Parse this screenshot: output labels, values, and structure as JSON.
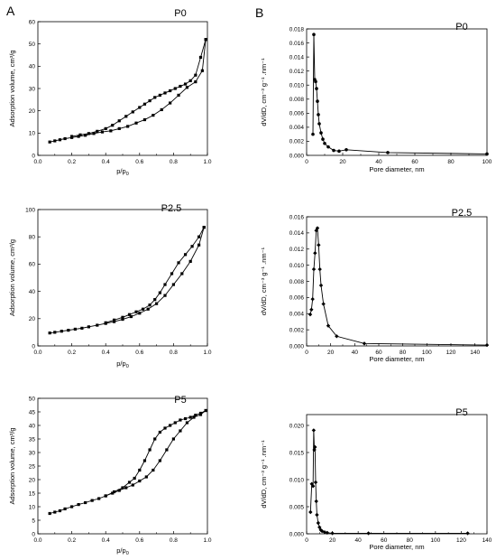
{
  "figure": {
    "panel_letters": [
      "A",
      "B"
    ]
  },
  "chart_data": [
    {
      "type": "line",
      "title": "P0",
      "xlabel": "p/p",
      "xlabel_sub": "0",
      "ylabel": "Adsorption volume, cm³/g",
      "xlim": [
        0.0,
        1.0
      ],
      "ylim": [
        0,
        60
      ],
      "xticks": [
        0.0,
        0.2,
        0.4,
        0.6,
        0.8,
        1.0
      ],
      "xtick_labels": [
        "0.0",
        "0.2",
        "0.4",
        "0.6",
        "0.8",
        "1.0"
      ],
      "yticks": [
        0,
        10,
        20,
        30,
        40,
        50,
        60
      ],
      "ytick_labels": [
        "0",
        "10",
        "20",
        "30",
        "40",
        "50",
        "60"
      ],
      "grid": false,
      "marker": "square",
      "series": [
        {
          "x": [
            0.07,
            0.1,
            0.13,
            0.16,
            0.2,
            0.24,
            0.28,
            0.33,
            0.38,
            0.43,
            0.48,
            0.53,
            0.58,
            0.63,
            0.68,
            0.73,
            0.78,
            0.83,
            0.88,
            0.93,
            0.97,
            0.99
          ],
          "y": [
            6,
            6.5,
            7,
            7.5,
            8,
            8.5,
            9,
            9.8,
            10.5,
            11,
            12,
            13,
            14.5,
            16,
            18,
            20.5,
            23.5,
            27,
            30.5,
            33,
            38,
            52
          ]
        },
        {
          "x": [
            0.99,
            0.96,
            0.93,
            0.9,
            0.87,
            0.84,
            0.81,
            0.78,
            0.75,
            0.72,
            0.69,
            0.66,
            0.63,
            0.6,
            0.56,
            0.52,
            0.48,
            0.44,
            0.4,
            0.35,
            0.3,
            0.25,
            0.2
          ],
          "y": [
            52,
            44,
            36,
            33.5,
            32,
            31,
            30,
            29,
            28,
            27,
            26,
            24.5,
            23,
            21.5,
            19.5,
            17.5,
            15.5,
            13.5,
            12,
            10.8,
            9.8,
            9.2,
            8.5
          ]
        }
      ]
    },
    {
      "type": "line",
      "title": "P0",
      "xlabel": "Pore diameter, nm",
      "ylabel": "dV/dD, cm⁻³ g⁻¹ .nm⁻¹",
      "xlim": [
        0,
        100
      ],
      "ylim": [
        0,
        0.018
      ],
      "xticks": [
        0,
        20,
        40,
        60,
        80,
        100
      ],
      "xtick_labels": [
        "0",
        "20",
        "40",
        "60",
        "80",
        "100"
      ],
      "yticks": [
        0,
        0.002,
        0.004,
        0.006,
        0.008,
        0.01,
        0.012,
        0.014,
        0.016,
        0.018
      ],
      "ytick_labels": [
        "0.000",
        "0.002",
        "0.004",
        "0.006",
        "0.008",
        "0.010",
        "0.012",
        "0.014",
        "0.016",
        "0.018"
      ],
      "grid": false,
      "marker": "circle",
      "series": [
        {
          "x": [
            3.5,
            4,
            4.5,
            5,
            5.5,
            6,
            6.5,
            7,
            8,
            9,
            10,
            12,
            15,
            18,
            22,
            45,
            100
          ],
          "y": [
            0.003,
            0.0172,
            0.0108,
            0.0105,
            0.0095,
            0.0077,
            0.0058,
            0.0045,
            0.0032,
            0.0023,
            0.0017,
            0.0012,
            0.0007,
            0.0006,
            0.0008,
            0.0004,
            0.0002
          ]
        }
      ]
    },
    {
      "type": "line",
      "title": "P2.5",
      "xlabel": "p/p",
      "xlabel_sub": "0",
      "ylabel": "Adsorption volume, cm³/g",
      "xlim": [
        0.0,
        1.0
      ],
      "ylim": [
        0,
        100
      ],
      "xticks": [
        0.0,
        0.2,
        0.4,
        0.6,
        0.8,
        1.0
      ],
      "xtick_labels": [
        "0.0",
        "0.2",
        "0.4",
        "0.6",
        "0.8",
        "1.0"
      ],
      "yticks": [
        0,
        20,
        40,
        60,
        80,
        100
      ],
      "ytick_labels": [
        "0",
        "20",
        "40",
        "60",
        "80",
        "100"
      ],
      "grid": false,
      "marker": "square",
      "series": [
        {
          "x": [
            0.07,
            0.1,
            0.14,
            0.18,
            0.22,
            0.26,
            0.3,
            0.35,
            0.4,
            0.45,
            0.5,
            0.55,
            0.6,
            0.65,
            0.7,
            0.75,
            0.8,
            0.85,
            0.9,
            0.95,
            0.98
          ],
          "y": [
            9.5,
            10,
            10.8,
            11.5,
            12.3,
            13,
            14,
            15.2,
            16.5,
            17.8,
            19.5,
            21.5,
            24,
            27,
            31,
            37,
            45,
            53,
            62,
            74,
            87
          ]
        },
        {
          "x": [
            0.98,
            0.95,
            0.91,
            0.87,
            0.83,
            0.79,
            0.75,
            0.72,
            0.69,
            0.66,
            0.62,
            0.58,
            0.54,
            0.5,
            0.45,
            0.4
          ],
          "y": [
            87,
            80,
            73,
            67,
            61,
            53,
            45,
            39,
            34,
            30,
            27,
            25,
            23,
            21,
            19,
            17
          ]
        }
      ]
    },
    {
      "type": "line",
      "title": "P2.5",
      "xlabel": "Pore diameter, nm",
      "ylabel": "dV/dD, cm⁻³ g⁻¹ .nm⁻¹",
      "xlim": [
        0,
        150
      ],
      "ylim": [
        0,
        0.016
      ],
      "xticks": [
        0,
        20,
        40,
        60,
        80,
        100,
        120,
        140
      ],
      "xtick_labels": [
        "0",
        "20",
        "40",
        "60",
        "80",
        "100",
        "120",
        "140"
      ],
      "yticks": [
        0,
        0.002,
        0.004,
        0.006,
        0.008,
        0.01,
        0.012,
        0.014,
        0.016
      ],
      "ytick_labels": [
        "0.000",
        "0.002",
        "0.004",
        "0.006",
        "0.008",
        "0.010",
        "0.012",
        "0.014",
        "0.016"
      ],
      "grid": false,
      "marker": "diamond",
      "series": [
        {
          "x": [
            3,
            4,
            5,
            6,
            7,
            8,
            9,
            10,
            11,
            12,
            14,
            18,
            25,
            48,
            150
          ],
          "y": [
            0.0039,
            0.0045,
            0.0058,
            0.0095,
            0.0115,
            0.0143,
            0.0146,
            0.0125,
            0.0095,
            0.0075,
            0.0052,
            0.0025,
            0.0012,
            0.0003,
            0.0001
          ]
        }
      ]
    },
    {
      "type": "line",
      "title": "P5",
      "xlabel": "p/p",
      "xlabel_sub": "0",
      "ylabel": "Adsorption volume, cm³/g",
      "xlim": [
        0.0,
        1.0
      ],
      "ylim": [
        0,
        50
      ],
      "xticks": [
        0.0,
        0.2,
        0.4,
        0.6,
        0.8,
        1.0
      ],
      "xtick_labels": [
        "0.0",
        "0.2",
        "0.4",
        "0.6",
        "0.8",
        "1.0"
      ],
      "yticks": [
        0,
        5,
        10,
        15,
        20,
        25,
        30,
        35,
        40,
        45,
        50
      ],
      "ytick_labels": [
        "0",
        "5",
        "10",
        "15",
        "20",
        "25",
        "30",
        "35",
        "40",
        "45",
        "50"
      ],
      "grid": false,
      "marker": "square",
      "series": [
        {
          "x": [
            0.07,
            0.1,
            0.13,
            0.16,
            0.2,
            0.24,
            0.28,
            0.32,
            0.36,
            0.4,
            0.44,
            0.48,
            0.52,
            0.56,
            0.6,
            0.64,
            0.68,
            0.72,
            0.76,
            0.8,
            0.84,
            0.88,
            0.92,
            0.96,
            0.99
          ],
          "y": [
            7.5,
            8,
            8.5,
            9.2,
            10,
            10.8,
            11.5,
            12.3,
            13,
            14,
            15,
            16,
            17,
            18,
            19.5,
            21,
            23.5,
            27,
            31,
            35,
            38,
            41,
            43,
            44,
            45.5
          ]
        },
        {
          "x": [
            0.99,
            0.96,
            0.93,
            0.9,
            0.87,
            0.84,
            0.81,
            0.78,
            0.75,
            0.72,
            0.69,
            0.66,
            0.63,
            0.6,
            0.57,
            0.54,
            0.5,
            0.45,
            0.4
          ],
          "y": [
            45.5,
            44.5,
            43.8,
            43,
            42.5,
            42,
            41,
            40,
            39,
            37.5,
            35,
            31,
            27,
            23.5,
            20.5,
            19,
            17,
            15.5,
            14
          ]
        }
      ]
    },
    {
      "type": "line",
      "title": "P5",
      "xlabel": "Pore diameter, nm",
      "ylabel": "dV/dD, cm⁻³ g⁻¹ .nm⁻¹",
      "xlim": [
        0,
        140
      ],
      "ylim": [
        0,
        0.022
      ],
      "xticks": [
        0,
        20,
        40,
        60,
        80,
        100,
        120,
        140
      ],
      "xtick_labels": [
        "0",
        "20",
        "40",
        "60",
        "80",
        "100",
        "120",
        "140"
      ],
      "yticks": [
        0,
        0.005,
        0.01,
        0.015,
        0.02
      ],
      "ytick_labels": [
        "0.000",
        "0.005",
        "0.010",
        "0.015",
        "0.020"
      ],
      "grid": false,
      "marker": "diamond",
      "series": [
        {
          "x": [
            3,
            4,
            5,
            5.5,
            6,
            6.5,
            7,
            7.5,
            8,
            9,
            10,
            11,
            12,
            14,
            16,
            20,
            48,
            125
          ],
          "y": [
            0.004,
            0.0092,
            0.0088,
            0.0191,
            0.0155,
            0.016,
            0.0095,
            0.006,
            0.0035,
            0.002,
            0.0012,
            0.0007,
            0.0005,
            0.0003,
            0.0002,
            0.0001,
            0.0001,
            0.0001
          ]
        }
      ]
    }
  ]
}
